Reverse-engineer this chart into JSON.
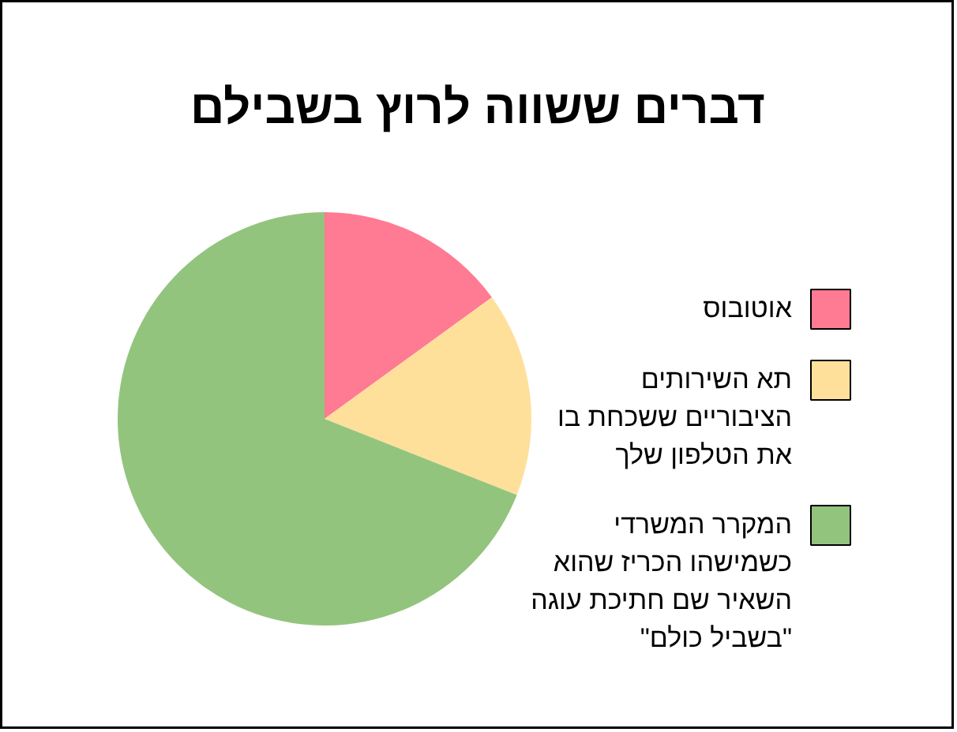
{
  "chart_data": {
    "type": "pie",
    "title": "דברים ששווה לרוץ בשבילם",
    "categories": [
      "אוטובוס",
      "תא השירותים הציבוריים ששכחת בו את הטלפון שלך",
      "המקרר המשרדי כשמישהו הכריז שהוא השאיר שם חתיכת עוגה \"בשביל כולם\""
    ],
    "values": [
      15,
      16,
      69
    ],
    "colors": [
      "#ff7a93",
      "#ffe09b",
      "#93c47d"
    ],
    "legend": "right"
  }
}
